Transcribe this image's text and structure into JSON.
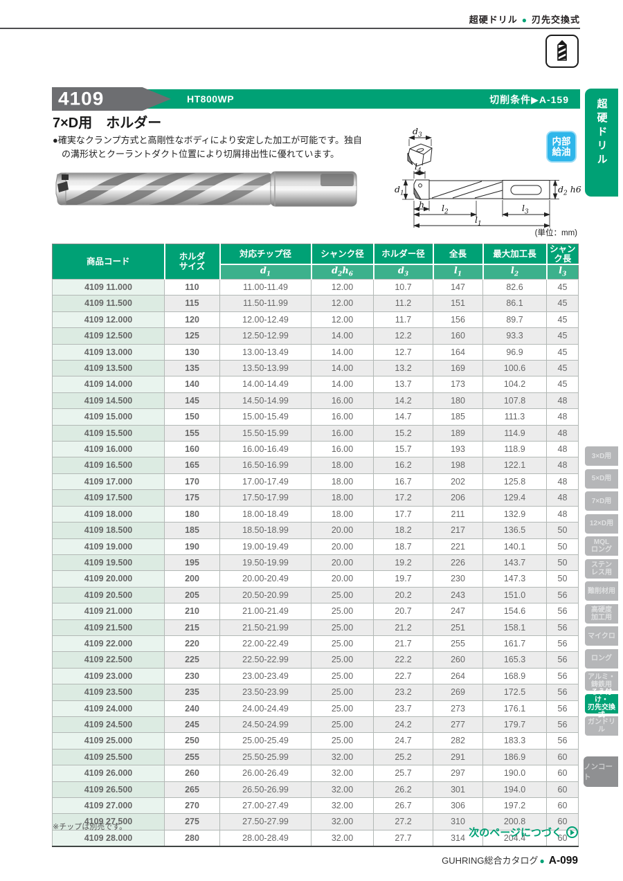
{
  "header": {
    "category": "超硬ドリル",
    "separator": "●",
    "subcategory": "刃先交換式"
  },
  "banner": {
    "series": "4109",
    "model": "HT800WP",
    "cutting_ref": "切削条件▶A-159"
  },
  "side_tab_top": "超硬ドリル",
  "product": {
    "title": "7×D用　ホルダー",
    "desc_line1": "●確実なクランプ方式と高剛性なボディにより安定した加工が可能です。独自",
    "desc_line2": "の溝形状とクーラントダクト位置により切屑排出性に優れています。",
    "badge_line1": "内部",
    "badge_line2": "給油"
  },
  "diagram": {
    "unit": "(単位：mm)",
    "labels": {
      "d3": "d_3",
      "l4": "l_4",
      "d1": "d_1",
      "h": "h",
      "l2": "l_2",
      "l3": "l_3",
      "l1": "l_1",
      "d2h6": "d_2 h6"
    }
  },
  "table": {
    "columns": [
      {
        "label": "商品コード",
        "sub": ""
      },
      {
        "label": "ホルダ\nサイズ",
        "sub": ""
      },
      {
        "label": "対応チップ径",
        "sub": "d_1"
      },
      {
        "label": "シャンク径",
        "sub": "d_2h_6"
      },
      {
        "label": "ホルダー径",
        "sub": "d_3"
      },
      {
        "label": "全長",
        "sub": "l_1"
      },
      {
        "label": "最大加工長",
        "sub": "l_2"
      },
      {
        "label": "シャンク長",
        "sub": "l_3"
      }
    ],
    "rows": [
      [
        "4109 11.000",
        "110",
        "11.00-11.49",
        "12.00",
        "10.7",
        "147",
        "82.6",
        "45"
      ],
      [
        "4109 11.500",
        "115",
        "11.50-11.99",
        "12.00",
        "11.2",
        "151",
        "86.1",
        "45"
      ],
      [
        "4109 12.000",
        "120",
        "12.00-12.49",
        "12.00",
        "11.7",
        "156",
        "89.7",
        "45"
      ],
      [
        "4109 12.500",
        "125",
        "12.50-12.99",
        "14.00",
        "12.2",
        "160",
        "93.3",
        "45"
      ],
      [
        "4109 13.000",
        "130",
        "13.00-13.49",
        "14.00",
        "12.7",
        "164",
        "96.9",
        "45"
      ],
      [
        "4109 13.500",
        "135",
        "13.50-13.99",
        "14.00",
        "13.2",
        "169",
        "100.6",
        "45"
      ],
      [
        "4109 14.000",
        "140",
        "14.00-14.49",
        "14.00",
        "13.7",
        "173",
        "104.2",
        "45"
      ],
      [
        "4109 14.500",
        "145",
        "14.50-14.99",
        "16.00",
        "14.2",
        "180",
        "107.8",
        "48"
      ],
      [
        "4109 15.000",
        "150",
        "15.00-15.49",
        "16.00",
        "14.7",
        "185",
        "111.3",
        "48"
      ],
      [
        "4109 15.500",
        "155",
        "15.50-15.99",
        "16.00",
        "15.2",
        "189",
        "114.9",
        "48"
      ],
      [
        "4109 16.000",
        "160",
        "16.00-16.49",
        "16.00",
        "15.7",
        "193",
        "118.9",
        "48"
      ],
      [
        "4109 16.500",
        "165",
        "16.50-16.99",
        "18.00",
        "16.2",
        "198",
        "122.1",
        "48"
      ],
      [
        "4109 17.000",
        "170",
        "17.00-17.49",
        "18.00",
        "16.7",
        "202",
        "125.8",
        "48"
      ],
      [
        "4109 17.500",
        "175",
        "17.50-17.99",
        "18.00",
        "17.2",
        "206",
        "129.4",
        "48"
      ],
      [
        "4109 18.000",
        "180",
        "18.00-18.49",
        "18.00",
        "17.7",
        "211",
        "132.9",
        "48"
      ],
      [
        "4109 18.500",
        "185",
        "18.50-18.99",
        "20.00",
        "18.2",
        "217",
        "136.5",
        "50"
      ],
      [
        "4109 19.000",
        "190",
        "19.00-19.49",
        "20.00",
        "18.7",
        "221",
        "140.1",
        "50"
      ],
      [
        "4109 19.500",
        "195",
        "19.50-19.99",
        "20.00",
        "19.2",
        "226",
        "143.7",
        "50"
      ],
      [
        "4109 20.000",
        "200",
        "20.00-20.49",
        "20.00",
        "19.7",
        "230",
        "147.3",
        "50"
      ],
      [
        "4109 20.500",
        "205",
        "20.50-20.99",
        "25.00",
        "20.2",
        "243",
        "151.0",
        "56"
      ],
      [
        "4109 21.000",
        "210",
        "21.00-21.49",
        "25.00",
        "20.7",
        "247",
        "154.6",
        "56"
      ],
      [
        "4109 21.500",
        "215",
        "21.50-21.99",
        "25.00",
        "21.2",
        "251",
        "158.1",
        "56"
      ],
      [
        "4109 22.000",
        "220",
        "22.00-22.49",
        "25.00",
        "21.7",
        "255",
        "161.7",
        "56"
      ],
      [
        "4109 22.500",
        "225",
        "22.50-22.99",
        "25.00",
        "22.2",
        "260",
        "165.3",
        "56"
      ],
      [
        "4109 23.000",
        "230",
        "23.00-23.49",
        "25.00",
        "22.7",
        "264",
        "168.9",
        "56"
      ],
      [
        "4109 23.500",
        "235",
        "23.50-23.99",
        "25.00",
        "23.2",
        "269",
        "172.5",
        "56"
      ],
      [
        "4109 24.000",
        "240",
        "24.00-24.49",
        "25.00",
        "23.7",
        "273",
        "176.1",
        "56"
      ],
      [
        "4109 24.500",
        "245",
        "24.50-24.99",
        "25.00",
        "24.2",
        "277",
        "179.7",
        "56"
      ],
      [
        "4109 25.000",
        "250",
        "25.00-25.49",
        "25.00",
        "24.7",
        "282",
        "183.3",
        "56"
      ],
      [
        "4109 25.500",
        "255",
        "25.50-25.99",
        "32.00",
        "25.2",
        "291",
        "186.9",
        "60"
      ],
      [
        "4109 26.000",
        "260",
        "26.00-26.49",
        "32.00",
        "25.7",
        "297",
        "190.0",
        "60"
      ],
      [
        "4109 26.500",
        "265",
        "26.50-26.99",
        "32.00",
        "26.2",
        "301",
        "194.0",
        "60"
      ],
      [
        "4109 27.000",
        "270",
        "27.00-27.49",
        "32.00",
        "26.7",
        "306",
        "197.2",
        "60"
      ],
      [
        "4109 27.500",
        "275",
        "27.50-27.99",
        "32.00",
        "27.2",
        "310",
        "200.8",
        "60"
      ],
      [
        "4109 28.000",
        "280",
        "28.00-28.49",
        "32.00",
        "27.7",
        "314",
        "204.4",
        "60"
      ]
    ]
  },
  "sidebar": {
    "items": [
      {
        "label": "3×D用",
        "active": false
      },
      {
        "label": "5×D用",
        "active": false
      },
      {
        "label": "7×D用",
        "active": false
      },
      {
        "label": "12×D用",
        "active": false
      },
      {
        "label": "MQL\nロング",
        "active": false
      },
      {
        "label": "ステン\nレス用",
        "active": false
      },
      {
        "label": "難削材用",
        "active": false
      },
      {
        "label": "高硬度\n加工用",
        "active": false
      },
      {
        "label": "マイクロ",
        "active": false
      },
      {
        "label": "ロング",
        "active": false
      },
      {
        "label": "アルミ・\n鋳鉄用",
        "active": false
      },
      {
        "label": "ろう付け・\n刃先交換式",
        "active": true
      },
      {
        "label": "ガンドリル",
        "active": false
      }
    ],
    "noncoat": "ノンコート"
  },
  "footer": {
    "note": "※チップは別売です。",
    "next_page": "次のページにつづく",
    "catalog": "GUHRING総合カタログ",
    "dot": "●",
    "page_no": "A-099"
  }
}
